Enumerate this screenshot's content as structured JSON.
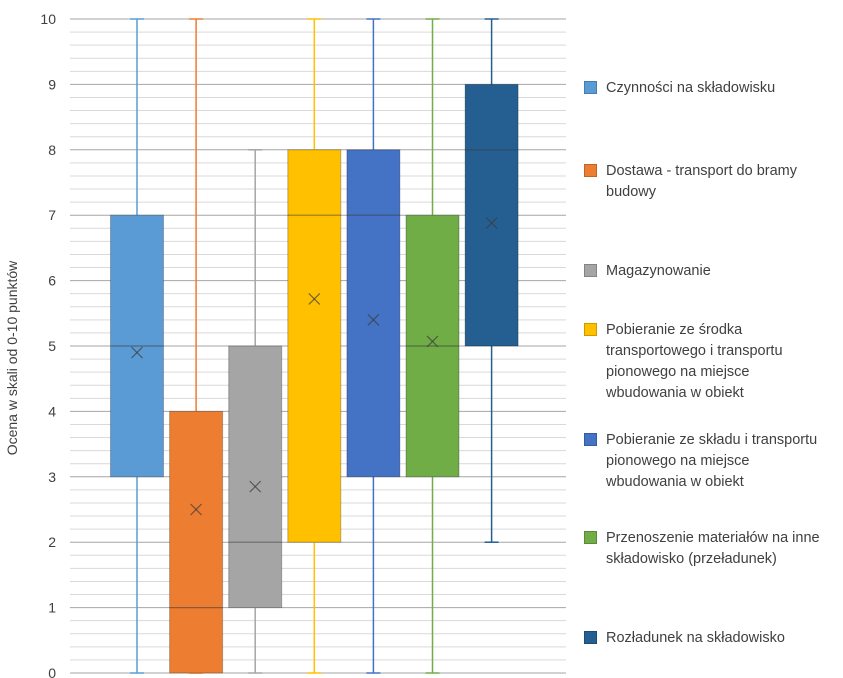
{
  "chart_data": {
    "type": "boxplot",
    "ylabel": "Ocena w skali od 0-10 punktów",
    "ylim": [
      0,
      10
    ],
    "yticks": [
      "0",
      "1",
      "2",
      "3",
      "4",
      "5",
      "6",
      "7",
      "8",
      "9",
      "10"
    ],
    "minor_grid_step": 0.2,
    "grid": true,
    "legend_position": "right",
    "series": [
      {
        "name": "Czynności na składowisku",
        "color": "#5b9bd5",
        "min": 0,
        "q1": 3,
        "median": 5,
        "q3": 7,
        "max": 10,
        "mean": 4.9
      },
      {
        "name": "Dostawa - transport do bramy budowy",
        "color": "#ed7d31",
        "min": 0,
        "q1": 0,
        "median": 1,
        "q3": 4,
        "max": 10,
        "mean": 2.5
      },
      {
        "name": "Magazynowanie",
        "color": "#a5a5a5",
        "min": 0,
        "q1": 1,
        "median": 2,
        "q3": 5,
        "max": 8,
        "mean": 2.85
      },
      {
        "name": "Pobieranie  ze środka transportowego i transportu pionowego na miejsce wbudowania w obiekt",
        "color": "#ffc000",
        "min": 0,
        "q1": 2,
        "median": 7,
        "q3": 8,
        "max": 10,
        "mean": 5.72
      },
      {
        "name": "Pobieranie ze składu i transportu pionowego na miejsce wbudowania w obiekt",
        "color": "#4472c4",
        "min": 0,
        "q1": 3,
        "median": 7,
        "q3": 8,
        "max": 10,
        "mean": 5.4
      },
      {
        "name": "Przenoszenie materiałów na inne składowisko (przeładunek)",
        "color": "#70ad47",
        "min": 0,
        "q1": 3,
        "median": 5,
        "q3": 7,
        "max": 10,
        "mean": 5.07
      },
      {
        "name": "Rozładunek na składowisko",
        "color": "#255e91",
        "min": 2,
        "q1": 5,
        "median": 8,
        "q3": 9,
        "max": 10,
        "mean": 6.88
      }
    ]
  },
  "legend": {
    "items": [
      {
        "label": "Czynności na składowisku",
        "color": "#5b9bd5"
      },
      {
        "label": "Dostawa - transport do bramy\nbudowy",
        "color": "#ed7d31"
      },
      {
        "label": "Magazynowanie",
        "color": "#a5a5a5"
      },
      {
        "label": "Pobieranie  ze środka\ntransportowego i transportu\npionowego na miejsce\nwbudowania w obiekt",
        "color": "#ffc000"
      },
      {
        "label": "Pobieranie ze składu i transportu\npionowego na miejsce\nwbudowania w obiekt",
        "color": "#4472c4"
      },
      {
        "label": "Przenoszenie materiałów na inne\nskładowisko (przeładunek)",
        "color": "#70ad47"
      },
      {
        "label": "Rozładunek na składowisko",
        "color": "#255e91"
      }
    ]
  }
}
